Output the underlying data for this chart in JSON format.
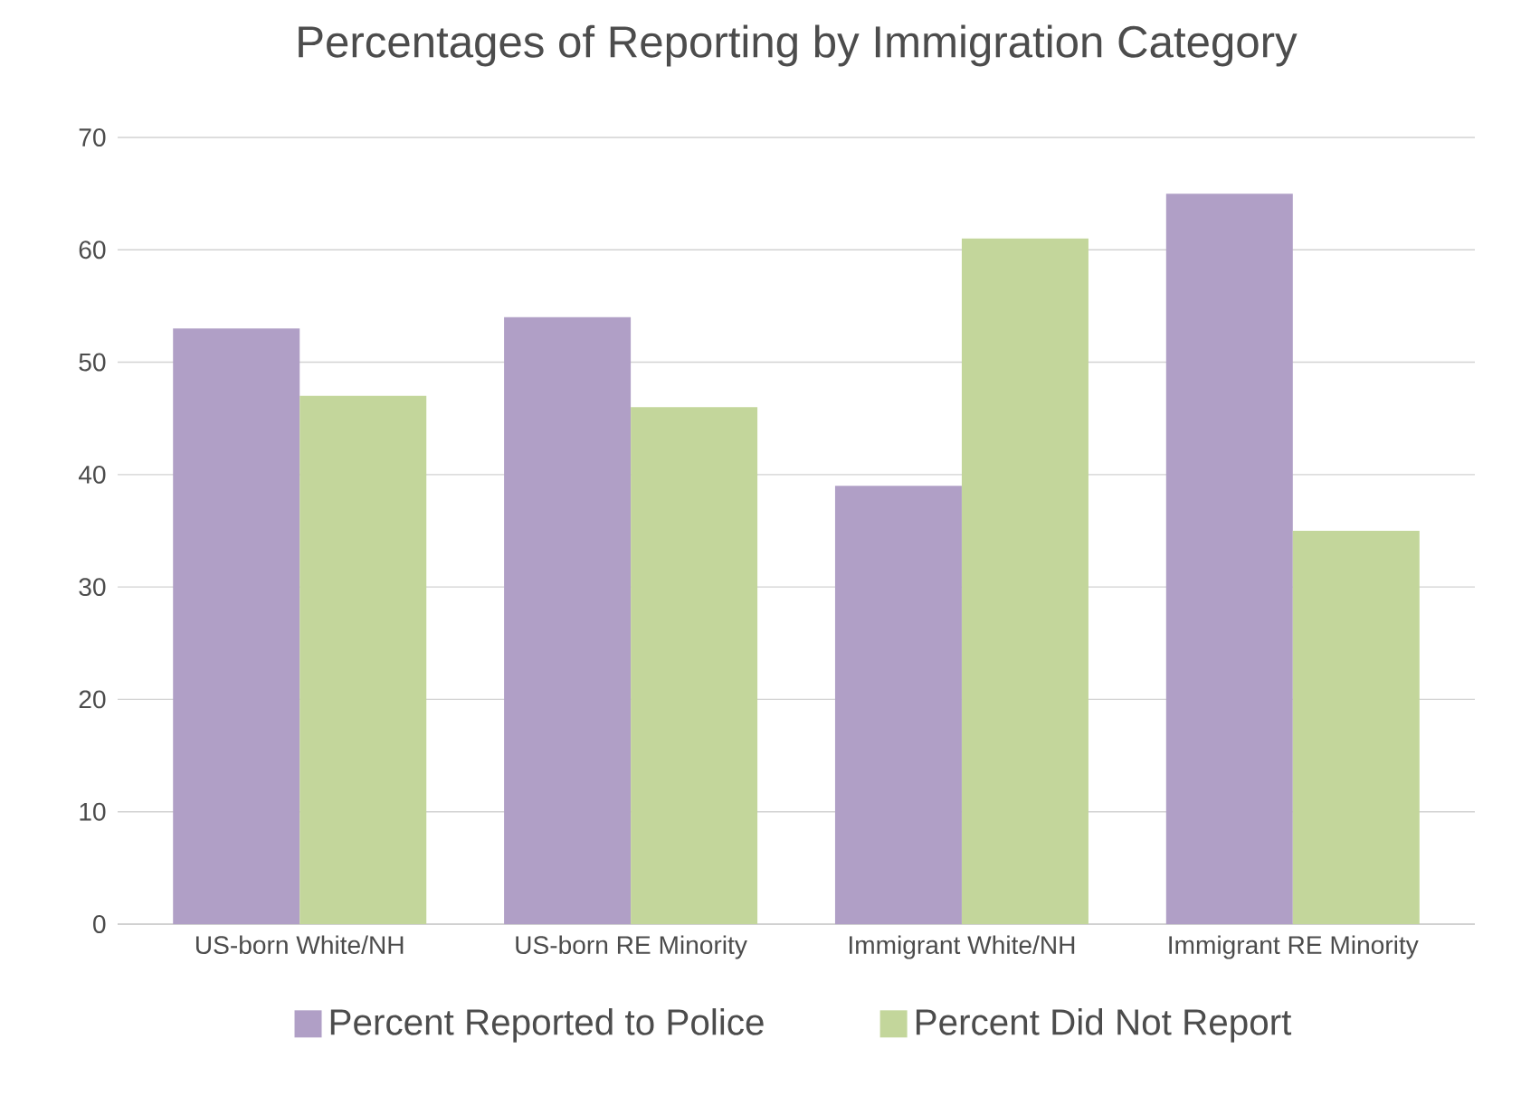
{
  "chart_data": {
    "type": "bar",
    "title": "Percentages of Reporting by Immigration Category",
    "categories": [
      "US-born White/NH",
      "US-born RE Minority",
      "Immigrant White/NH",
      "Immigrant RE Minority"
    ],
    "series": [
      {
        "name": "Percent Reported to Police",
        "color": "#b09fc6",
        "values": [
          53,
          54,
          39,
          65
        ]
      },
      {
        "name": "Percent Did Not Report",
        "color": "#c3d69b",
        "values": [
          47,
          46,
          61,
          35
        ]
      }
    ],
    "ylim": [
      0,
      70
    ],
    "yticks": [
      0,
      10,
      20,
      30,
      40,
      50,
      60,
      70
    ],
    "grid": "y",
    "legend": "bottom"
  }
}
